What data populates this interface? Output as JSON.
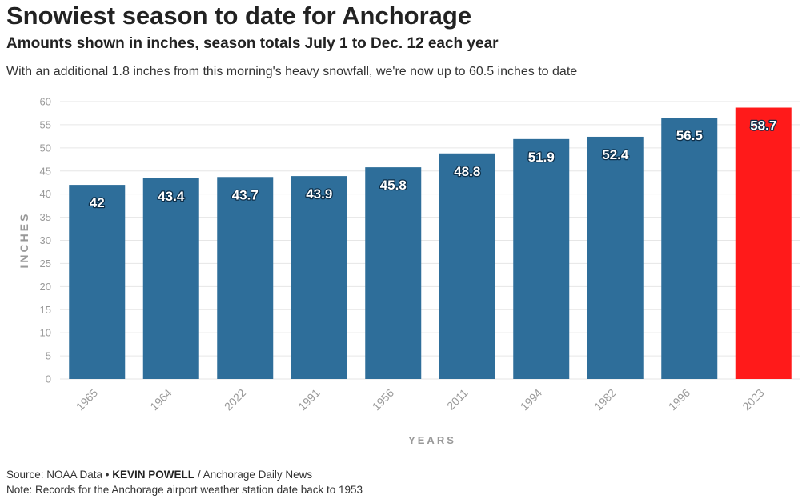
{
  "title": "Snowiest season to date for Anchorage",
  "subtitle": "Amounts shown in inches, season totals July 1 to Dec. 12 each year",
  "description": "With an additional 1.8 inches from this morning's heavy snowfall, we're now up to 60.5 inches to date",
  "footer": {
    "source_prefix": "Source: NOAA Data • ",
    "author": "KEVIN POWELL",
    "source_suffix": " / Anchorage Daily News",
    "note": "Note: Records for the Anchorage airport weather station date back to 1953"
  },
  "colors": {
    "bar": "#2e6e9a",
    "highlight": "#ff1a1a",
    "grid": "#e6e6e6",
    "tick": "#999999"
  },
  "chart_data": {
    "type": "bar",
    "categories": [
      "1965",
      "1964",
      "2022",
      "1991",
      "1956",
      "2011",
      "1994",
      "1982",
      "1996",
      "2023"
    ],
    "values": [
      42,
      43.4,
      43.7,
      43.9,
      45.8,
      48.8,
      51.9,
      52.4,
      56.5,
      58.7
    ],
    "data_labels": [
      "42",
      "43.4",
      "43.7",
      "43.9",
      "45.8",
      "48.8",
      "51.9",
      "52.4",
      "56.5",
      "58.7"
    ],
    "highlight_category": "2023",
    "xlabel": "YEARS",
    "ylabel": "INCHES",
    "ylim": [
      0,
      60
    ],
    "yticks": [
      0,
      5,
      10,
      15,
      20,
      25,
      30,
      35,
      40,
      45,
      50,
      55,
      60
    ],
    "grid": true
  }
}
